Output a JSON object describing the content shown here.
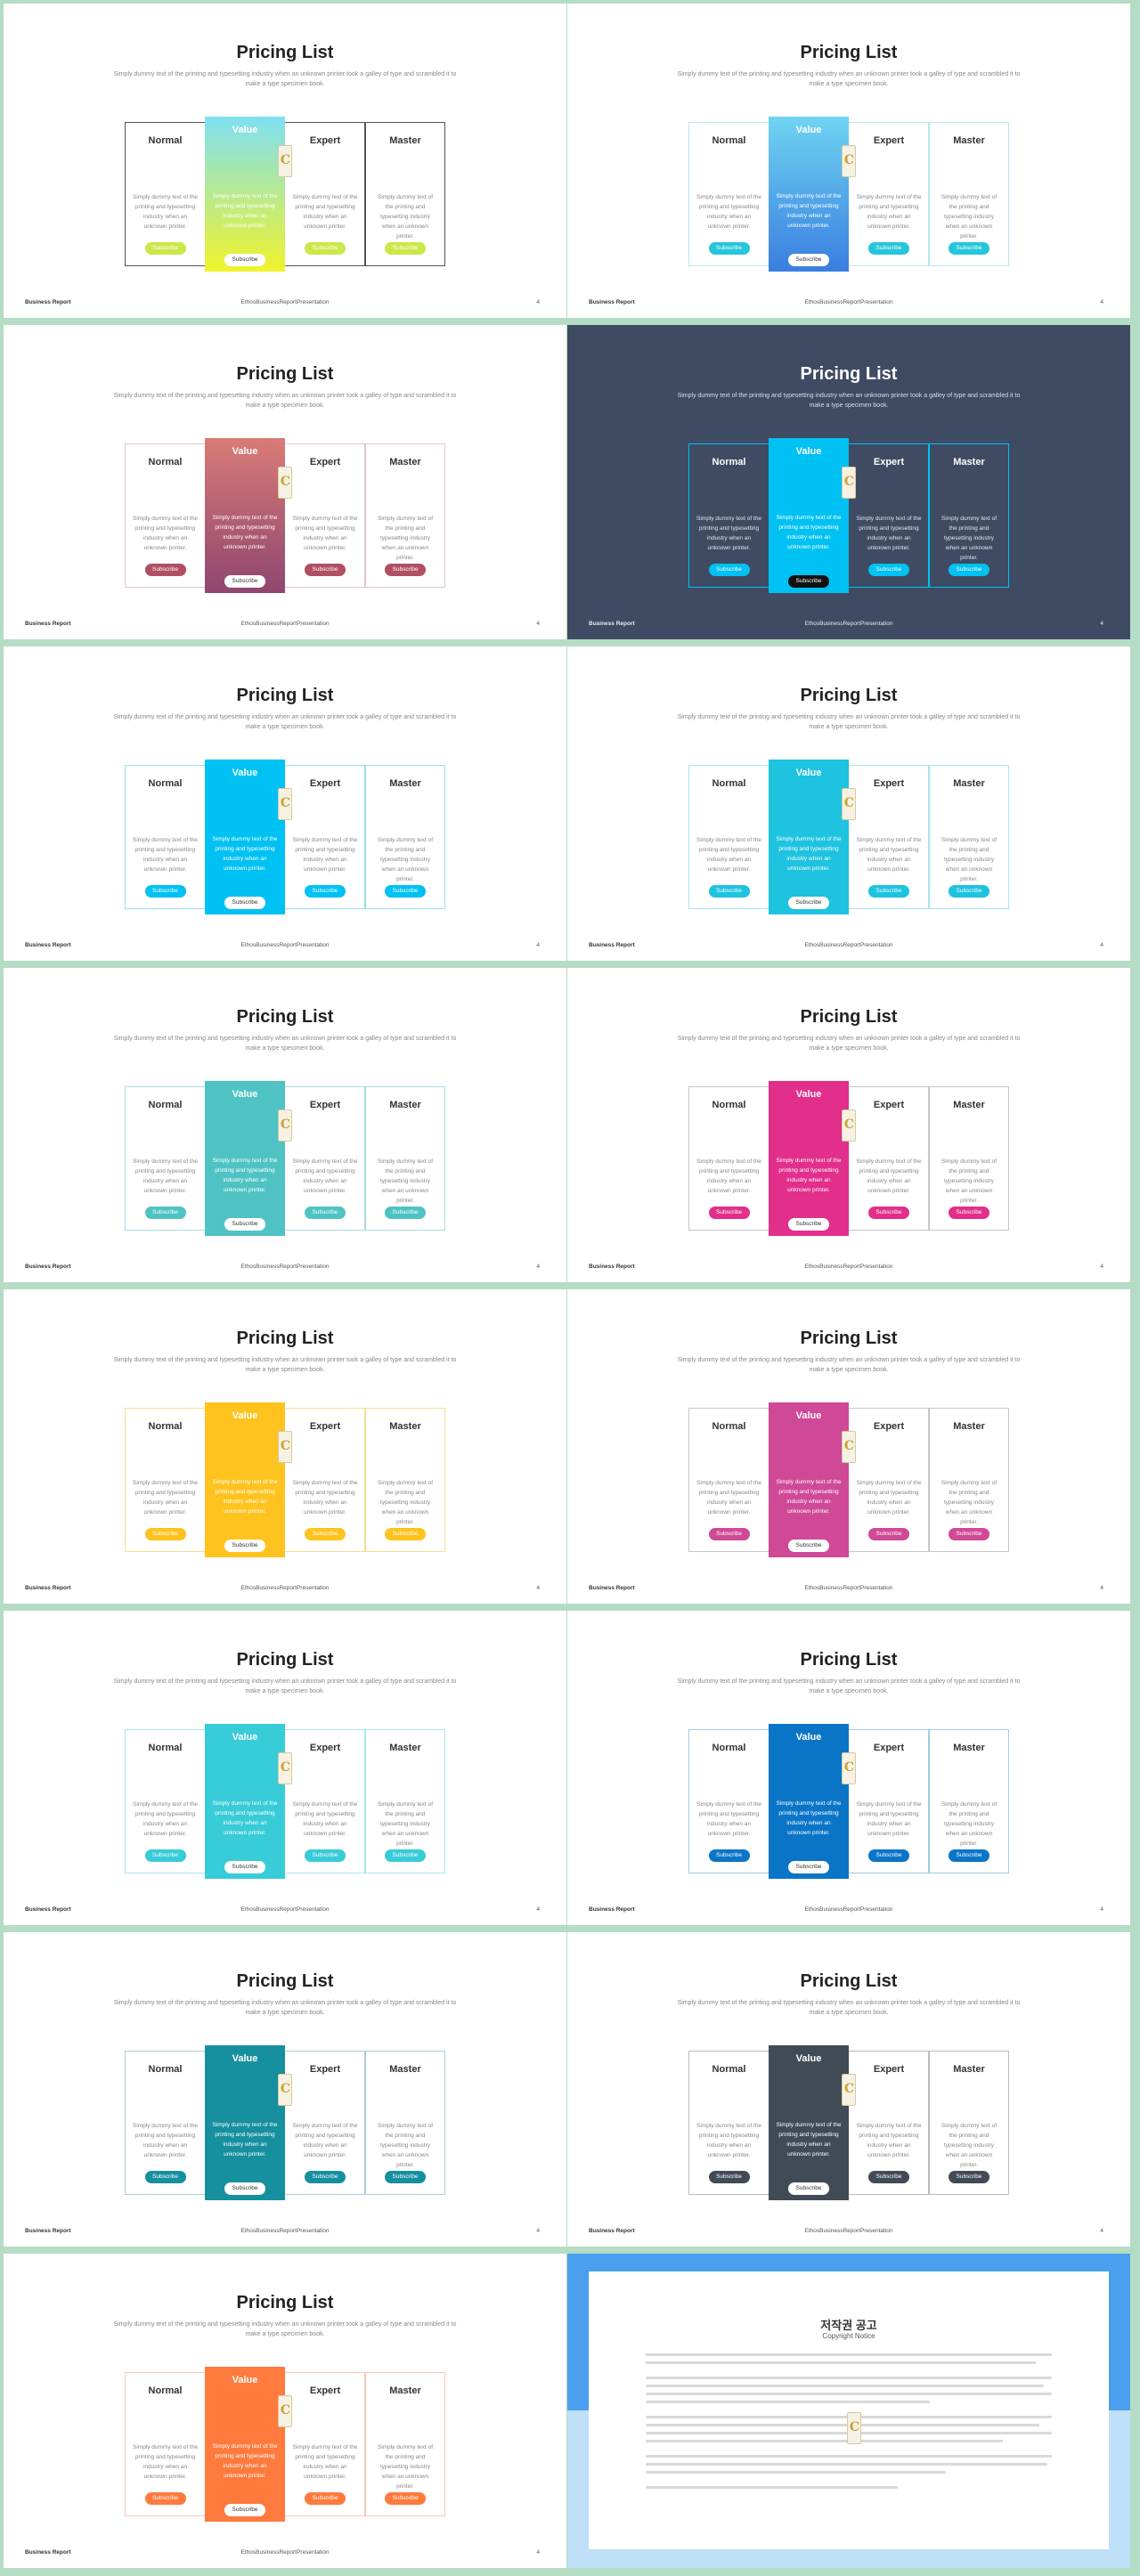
{
  "common": {
    "title": "Pricing List",
    "subtitle": "Simply dummy text of the printing and typesetting industry when an unknown printer took a galley of type and scrambled it to make a type specimen book.",
    "card_text": "Simply dummy text of the printing and typesetting industry when an unknown printer.",
    "subscribe_label": "Subscribe",
    "footer_left": "Business Report",
    "footer_center": "EthosBusinessReportPresentation",
    "page_number": "4",
    "plans": [
      {
        "name": "Normal"
      },
      {
        "name": "Value"
      },
      {
        "name": "Expert"
      },
      {
        "name": "Master"
      }
    ]
  },
  "slides": [
    {
      "accent": "#c9e84a",
      "border": "#555555",
      "featured_fill": "linear-gradient(180deg,#7fe0f2,#f0f32c)"
    },
    {
      "accent": "#26c6da",
      "border": "#b8e6ee",
      "featured_fill": "linear-gradient(180deg,#6fd4f2,#3a7ee0)"
    },
    {
      "accent": "#b14e63",
      "border": "#e3c3c9",
      "featured_fill": "linear-gradient(180deg,#d97b77,#8f4670)"
    },
    {
      "accent": "#00c1f3",
      "border": "#00c1f3",
      "featured_fill": "#00c1f3",
      "dark": true
    },
    {
      "accent": "#00c1f3",
      "border": "#9bdcee",
      "featured_fill": "#00c1f3"
    },
    {
      "accent": "#1ec3e0",
      "border": "#a9e4ee",
      "featured_fill": "#1ec3e0"
    },
    {
      "accent": "#4fc3c3",
      "border": "#a8dede",
      "featured_fill": "#4fc3c3"
    },
    {
      "accent": "#e12f8b",
      "border": "#c7c7c7",
      "featured_fill": "#e12f8b"
    },
    {
      "accent": "#ffc31f",
      "border": "#f5e08e",
      "featured_fill": "#ffc31f"
    },
    {
      "accent": "#cf4997",
      "border": "#c7c7c7",
      "featured_fill": "#cf4997"
    },
    {
      "accent": "#38cbd8",
      "border": "#a9e6ea",
      "featured_fill": "#38cbd8"
    },
    {
      "accent": "#0a75c7",
      "border": "#9fcde0",
      "featured_fill": "#0a75c7"
    },
    {
      "accent": "#168f9e",
      "border": "#a8cfd3",
      "featured_fill": "#168f9e"
    },
    {
      "accent": "#414b56",
      "border": "#b9bcc0",
      "featured_fill": "#414b56"
    },
    {
      "accent": "#ff7a3d",
      "border": "#f5c9b2",
      "featured_fill": "#ff7a3d"
    }
  ],
  "copyright": {
    "title": "저작권 공고",
    "subtitle": "Copyright Notice"
  }
}
